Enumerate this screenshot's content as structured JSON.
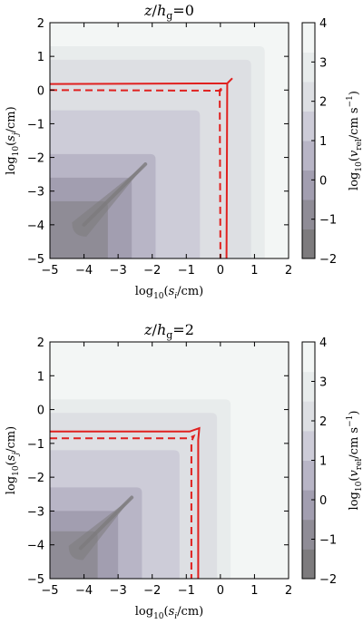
{
  "chart_data": [
    {
      "type": "heatmap",
      "title": "z/h_g = 0",
      "title_parts": {
        "var": "z",
        "den": "h",
        "sub": "g",
        "eq": "=0"
      },
      "xlabel": "log10(s_i/cm)",
      "ylabel": "log10(s_j/cm)",
      "colorbar_label": "log10(v_rel/cm s^-1)",
      "xlim": [
        -5,
        2
      ],
      "ylim": [
        -5,
        2
      ],
      "xticks": [
        "−5",
        "−4",
        "−3",
        "−2",
        "−1",
        "0",
        "1",
        "2"
      ],
      "yticks": [
        "−5",
        "−4",
        "−3",
        "−2",
        "−1",
        "0",
        "1",
        "2"
      ],
      "colorbar_range": [
        -2,
        4
      ],
      "colorbar_ticks": [
        "−2",
        "−1",
        "0",
        "1",
        "2",
        "3",
        "4"
      ],
      "diagonal_valley": {
        "from": [
          -4.0,
          -4.0
        ],
        "to": [
          -2.2,
          -2.2
        ]
      },
      "solid_contour": [
        [
          -5,
          0.18
        ],
        [
          0.2,
          0.2
        ],
        [
          0.35,
          0.35
        ],
        [
          0.2,
          0.2
        ],
        [
          0.18,
          -5
        ]
      ],
      "dashed_contour": [
        [
          -5,
          0.0
        ],
        [
          -0.05,
          -0.02
        ],
        [
          0.08,
          0.08
        ],
        [
          -0.02,
          -0.05
        ],
        [
          0.0,
          -5
        ]
      ]
    },
    {
      "type": "heatmap",
      "title": "z/h_g = 2",
      "title_parts": {
        "var": "z",
        "den": "h",
        "sub": "g",
        "eq": "=2"
      },
      "xlabel": "log10(s_i/cm)",
      "ylabel": "log10(s_j/cm)",
      "colorbar_label": "log10(v_rel/cm s^-1)",
      "xlim": [
        -5,
        2
      ],
      "ylim": [
        -5,
        2
      ],
      "xticks": [
        "−5",
        "−4",
        "−3",
        "−2",
        "−1",
        "0",
        "1",
        "2"
      ],
      "yticks": [
        "−5",
        "−4",
        "−3",
        "−2",
        "−1",
        "0",
        "1",
        "2"
      ],
      "colorbar_range": [
        -2,
        4
      ],
      "colorbar_ticks": [
        "−2",
        "−1",
        "0",
        "1",
        "2",
        "3",
        "4"
      ],
      "diagonal_valley": {
        "from": [
          -4.1,
          -4.1
        ],
        "to": [
          -2.6,
          -2.6
        ]
      },
      "solid_contour": [
        [
          -5,
          -0.65
        ],
        [
          -0.9,
          -0.65
        ],
        [
          -0.62,
          -0.55
        ],
        [
          -0.65,
          -0.9
        ],
        [
          -0.65,
          -5
        ]
      ],
      "dashed_contour": [
        [
          -5,
          -0.85
        ],
        [
          -0.95,
          -0.85
        ],
        [
          -0.78,
          -0.78
        ],
        [
          -0.85,
          -0.95
        ],
        [
          -0.85,
          -5
        ]
      ]
    }
  ],
  "colors": {
    "contour_line": "#e0201f",
    "colormap": [
      "#7d7b7d",
      "#8f8c96",
      "#a29eb0",
      "#b8b5c6",
      "#cdccd8",
      "#dddfe3",
      "#e8ecec",
      "#f3f6f5"
    ]
  }
}
